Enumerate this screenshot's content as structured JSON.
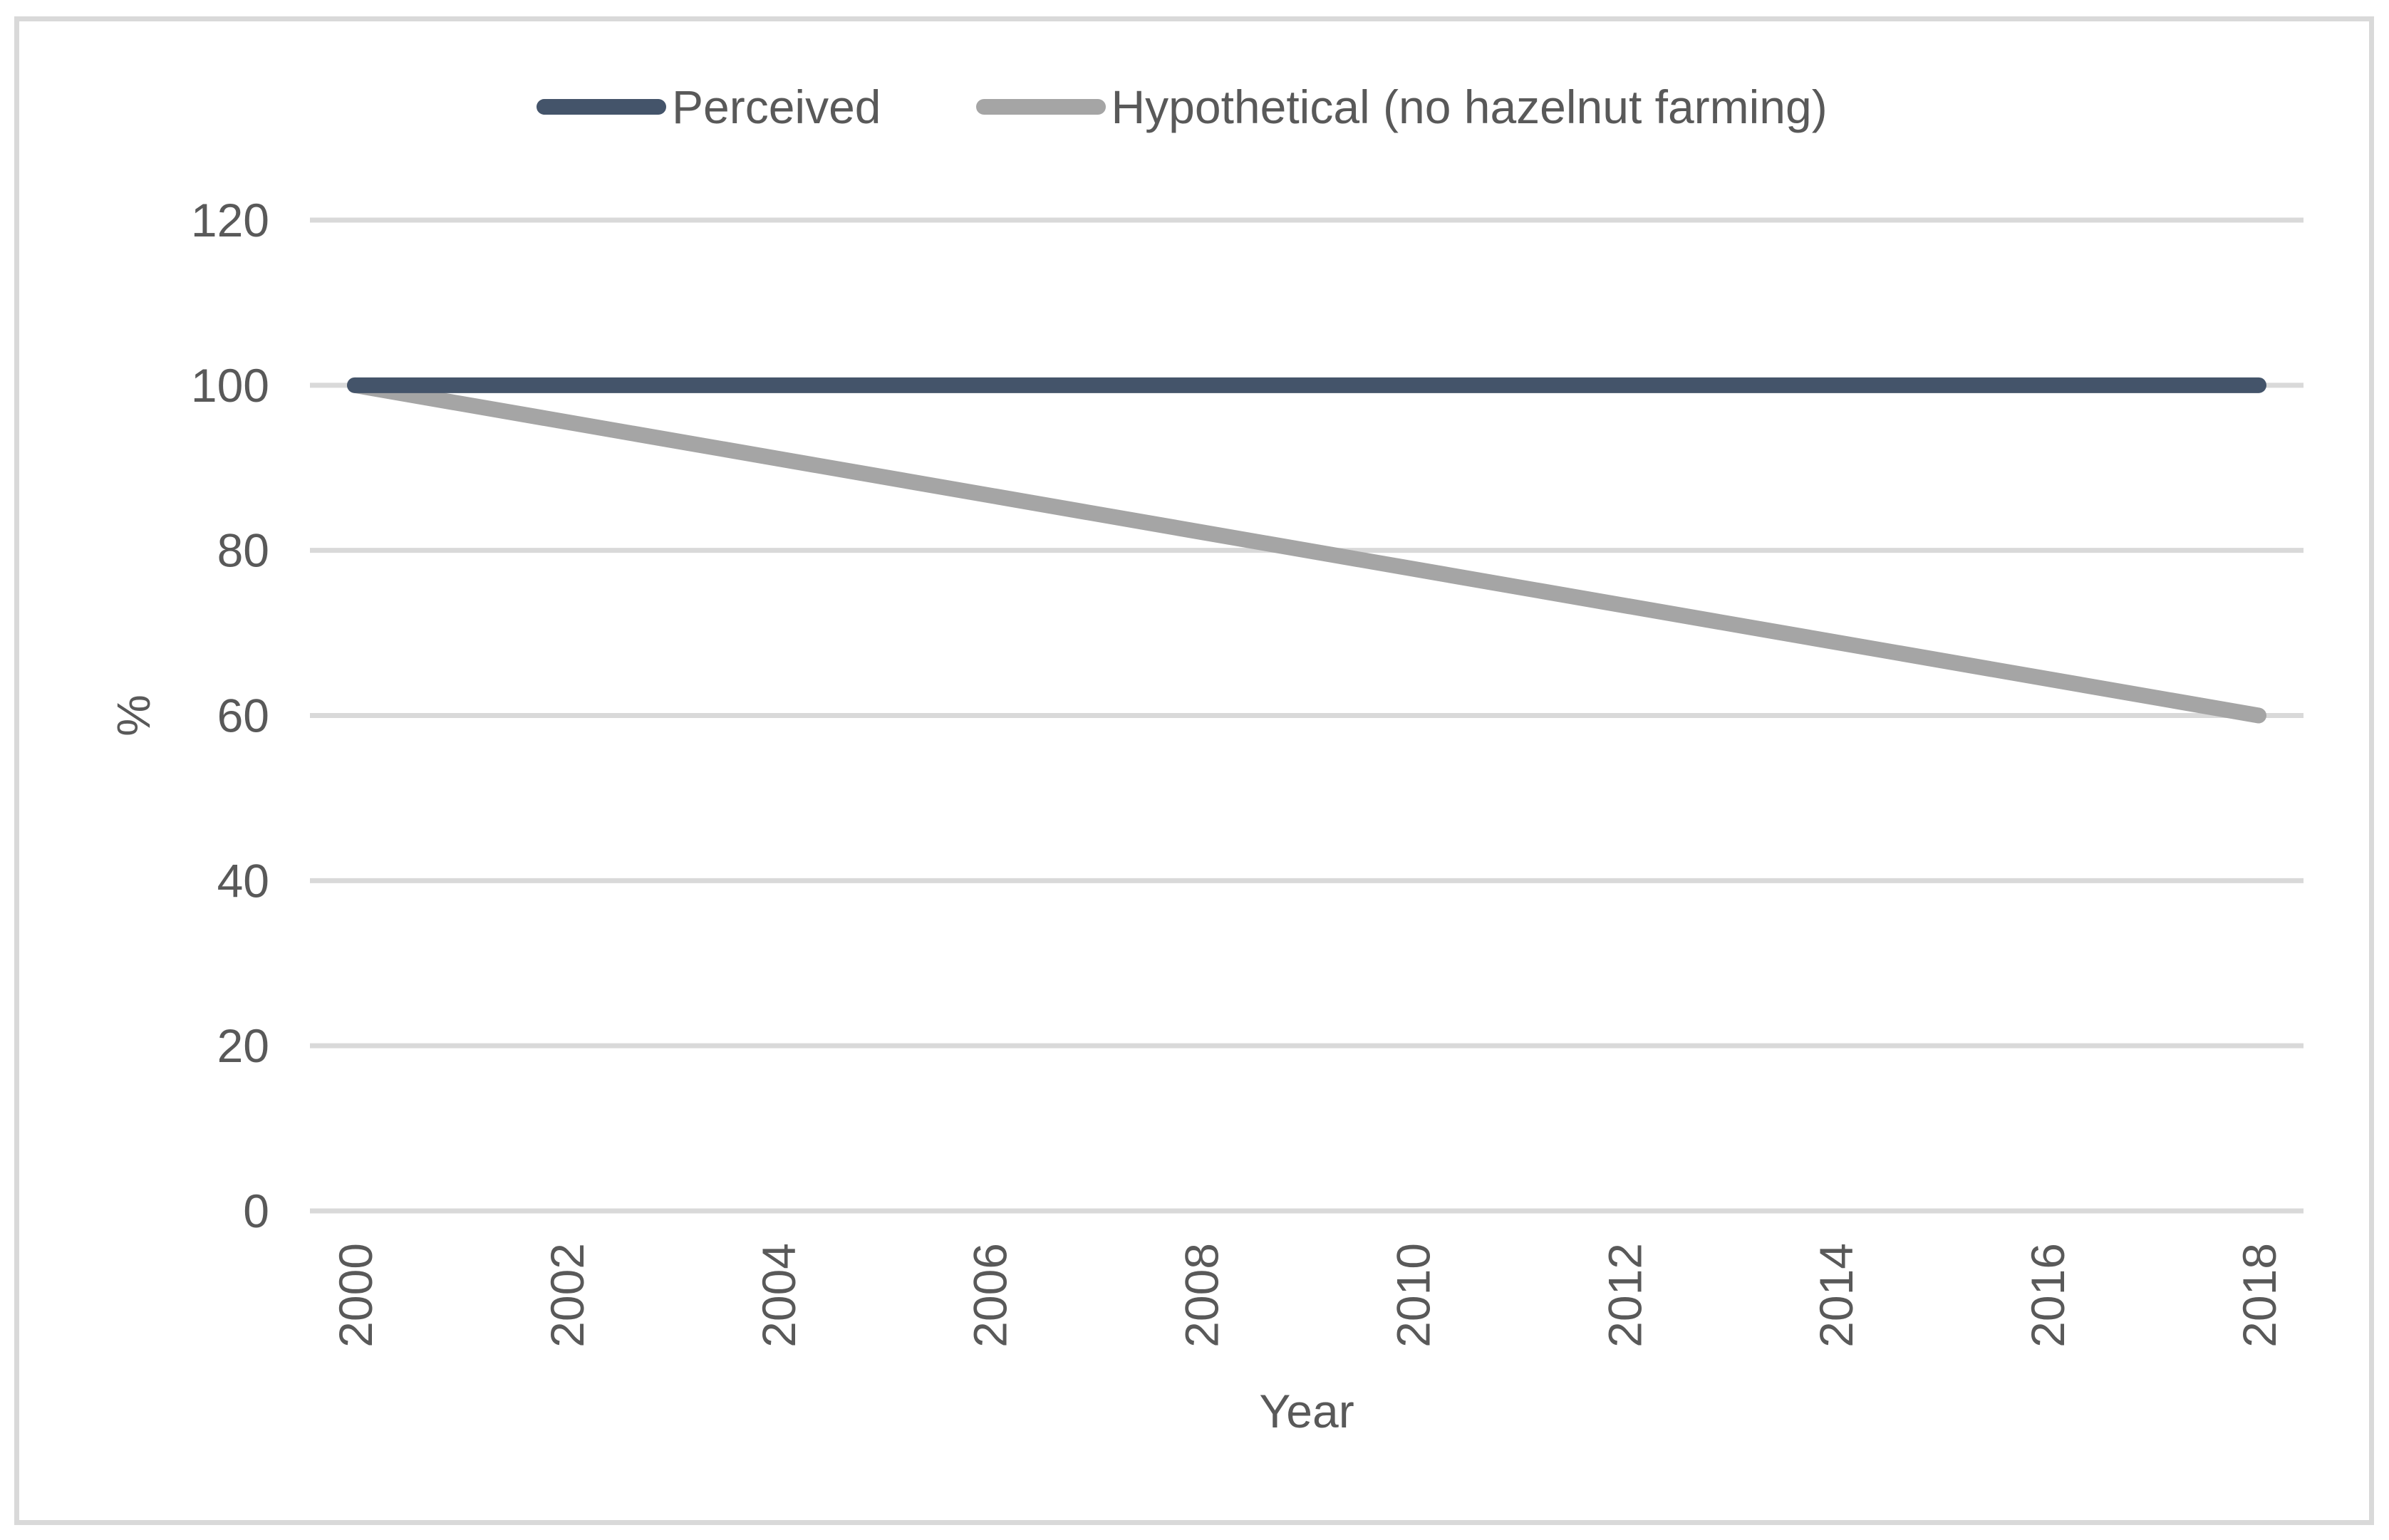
{
  "chart_data": {
    "type": "line",
    "title": "",
    "xlabel": "Year",
    "ylabel": "%",
    "xlim": [
      2000,
      2018
    ],
    "ylim": [
      0,
      120
    ],
    "x_ticks": [
      2000,
      2002,
      2004,
      2006,
      2008,
      2010,
      2012,
      2014,
      2016,
      2018
    ],
    "x_tick_labels": [
      "2000",
      "2002",
      "2004",
      "2006",
      "2008",
      "2010",
      "2012",
      "2014",
      "2016",
      "2018"
    ],
    "y_ticks": [
      0,
      20,
      40,
      60,
      80,
      100,
      120
    ],
    "y_tick_labels": [
      "0",
      "20",
      "40",
      "60",
      "80",
      "100",
      "120"
    ],
    "grid": "horizontal",
    "legend_position": "top",
    "series": [
      {
        "name": "Perceived",
        "color": "#44546A",
        "points": [
          {
            "x": 2000,
            "y": 100
          },
          {
            "x": 2018,
            "y": 100
          }
        ]
      },
      {
        "name": "Hypothetical (no hazelnut farming)",
        "color": "#A5A5A5",
        "points": [
          {
            "x": 2000,
            "y": 100
          },
          {
            "x": 2018,
            "y": 60
          }
        ]
      }
    ]
  },
  "colors": {
    "gridline": "#D9D9D9",
    "axis_text": "#595959",
    "frame_border": "#D9D9D9",
    "background": "#FFFFFF"
  }
}
